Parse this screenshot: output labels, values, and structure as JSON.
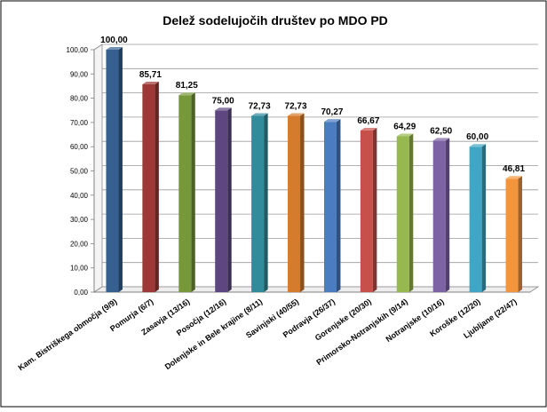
{
  "chart_data": {
    "type": "bar",
    "title": "Delež sodelujočih društev po MDO PD",
    "xlabel": "",
    "ylabel": "",
    "ylim": [
      0,
      100
    ],
    "yticks": [
      0,
      10,
      20,
      30,
      40,
      50,
      60,
      70,
      80,
      90,
      100
    ],
    "ytick_labels": [
      "0,00",
      "10,00",
      "20,00",
      "30,00",
      "40,00",
      "50,00",
      "60,00",
      "70,00",
      "80,00",
      "90,00",
      "100,00"
    ],
    "grid": true,
    "legend": "none",
    "categories": [
      "Kam. Bistriškega območja (9/9)",
      "Pomurja (6/7)",
      "Zasavja (13/16)",
      "Posočja (12/16)",
      "Dolenjske in Bele krajine (8/11)",
      "Savinjski (40/55)",
      "Podravja (26/37)",
      "Gorenjske (20/30)",
      "Primorsko-Notranjskih (9/14)",
      "Notranjske (10/16)",
      "Koroške (12/20)",
      "Ljubljane (22/47)"
    ],
    "values": [
      100.0,
      85.71,
      81.25,
      75.0,
      72.73,
      72.73,
      70.27,
      66.67,
      64.29,
      62.5,
      60.0,
      46.81
    ],
    "value_labels": [
      "100,00",
      "85,71",
      "81,25",
      "75,00",
      "72,73",
      "72,73",
      "70,27",
      "66,67",
      "64,29",
      "62,50",
      "60,00",
      "46,81"
    ],
    "colors": [
      "#35608f",
      "#9c3835",
      "#77983a",
      "#5e4781",
      "#318b9b",
      "#d57b2e",
      "#4a7cc2",
      "#c8504b",
      "#97b84f",
      "#7d62a4",
      "#3fa6c3",
      "#f3953c"
    ]
  }
}
